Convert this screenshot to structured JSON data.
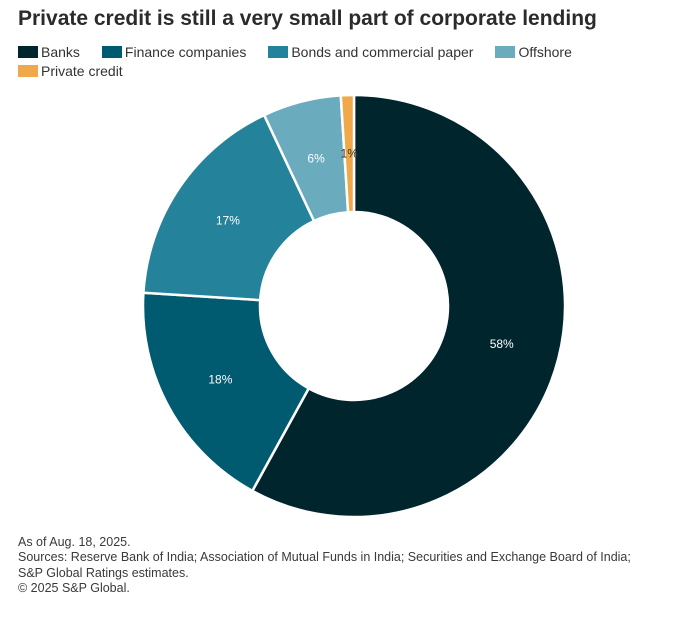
{
  "chart_data": {
    "type": "pie",
    "title": "Private credit is still a very small part of corporate lending",
    "categories": [
      "Banks",
      "Finance companies",
      "Bonds and commercial paper",
      "Offshore",
      "Private credit"
    ],
    "values": [
      58,
      18,
      17,
      6,
      1
    ],
    "data_labels": [
      "58%",
      "18%",
      "17%",
      "6%",
      "1%"
    ],
    "colors": [
      "#00252d",
      "#005a70",
      "#24829a",
      "#6aabbd",
      "#f0a94a"
    ],
    "label_colors": [
      "#ffffff",
      "#ffffff",
      "#ffffff",
      "#ffffff",
      "#333333"
    ],
    "donut": true,
    "legend_position": "top-left"
  },
  "footnotes": {
    "as_of": "As of Aug. 18, 2025.",
    "sources_line1": "Sources: Reserve Bank of India; Association of Mutual Funds in India; Securities and Exchange Board of India;",
    "sources_line2": "S&P Global Ratings estimates.",
    "copyright": "© 2025 S&P Global."
  }
}
